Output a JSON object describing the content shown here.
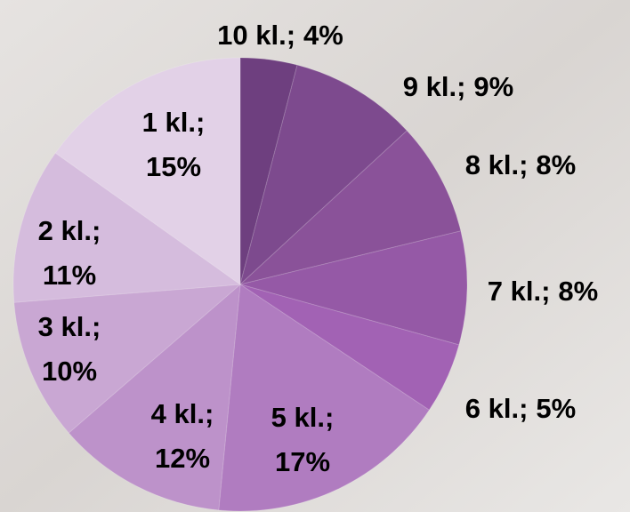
{
  "chart_data": {
    "type": "pie",
    "categories": [
      "10 kl.;",
      "9 kl.;",
      "8 kl.;",
      "7 kl.;",
      "6 kl.;",
      "5 kl.;",
      "4 kl.;",
      "3 kl.;",
      "2 kl.;",
      "1 kl.;"
    ],
    "values": [
      4,
      9,
      8,
      8,
      5,
      17,
      12,
      10,
      11,
      15
    ],
    "value_labels": [
      "4%",
      "9%",
      "8%",
      "8%",
      "5%",
      "17%",
      "12%",
      "10%",
      "11%",
      "15%"
    ],
    "colors": [
      "#6e3f7f",
      "#7d4a8e",
      "#8a5299",
      "#9559a6",
      "#a262b4",
      "#b07cc0",
      "#bd92ca",
      "#c9a7d3",
      "#d5bcdd",
      "#e2d1e7"
    ]
  }
}
